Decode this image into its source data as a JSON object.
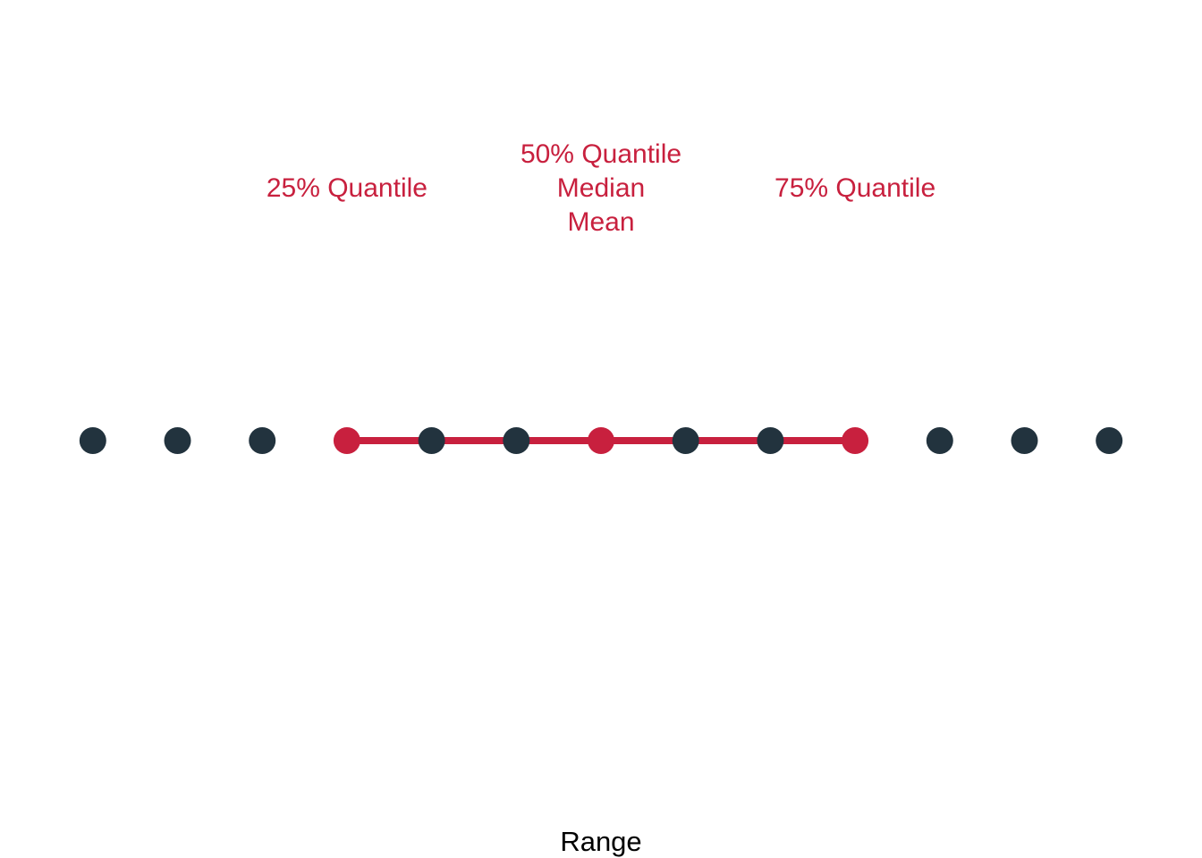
{
  "chart_data": {
    "type": "scatter",
    "title": "",
    "xlabel": "Range",
    "ylabel": "",
    "grid": false,
    "legend": "none",
    "xlim": [
      0.4,
      13.6
    ],
    "points": [
      1,
      2,
      3,
      4,
      5,
      6,
      7,
      8,
      9,
      10,
      11,
      12,
      13
    ],
    "range_segment": [
      4,
      10
    ],
    "highlighted": [
      4,
      7,
      10
    ],
    "annotations": [
      {
        "x": 4,
        "lines": [
          "25% Quantile"
        ]
      },
      {
        "x": 7,
        "lines": [
          "50% Quantile",
          "Median",
          "Mean"
        ]
      },
      {
        "x": 10,
        "lines": [
          "75% Quantile"
        ]
      }
    ],
    "colors": {
      "points": "#22333e",
      "highlight": "#c8203e",
      "background": "#ffffff"
    }
  }
}
